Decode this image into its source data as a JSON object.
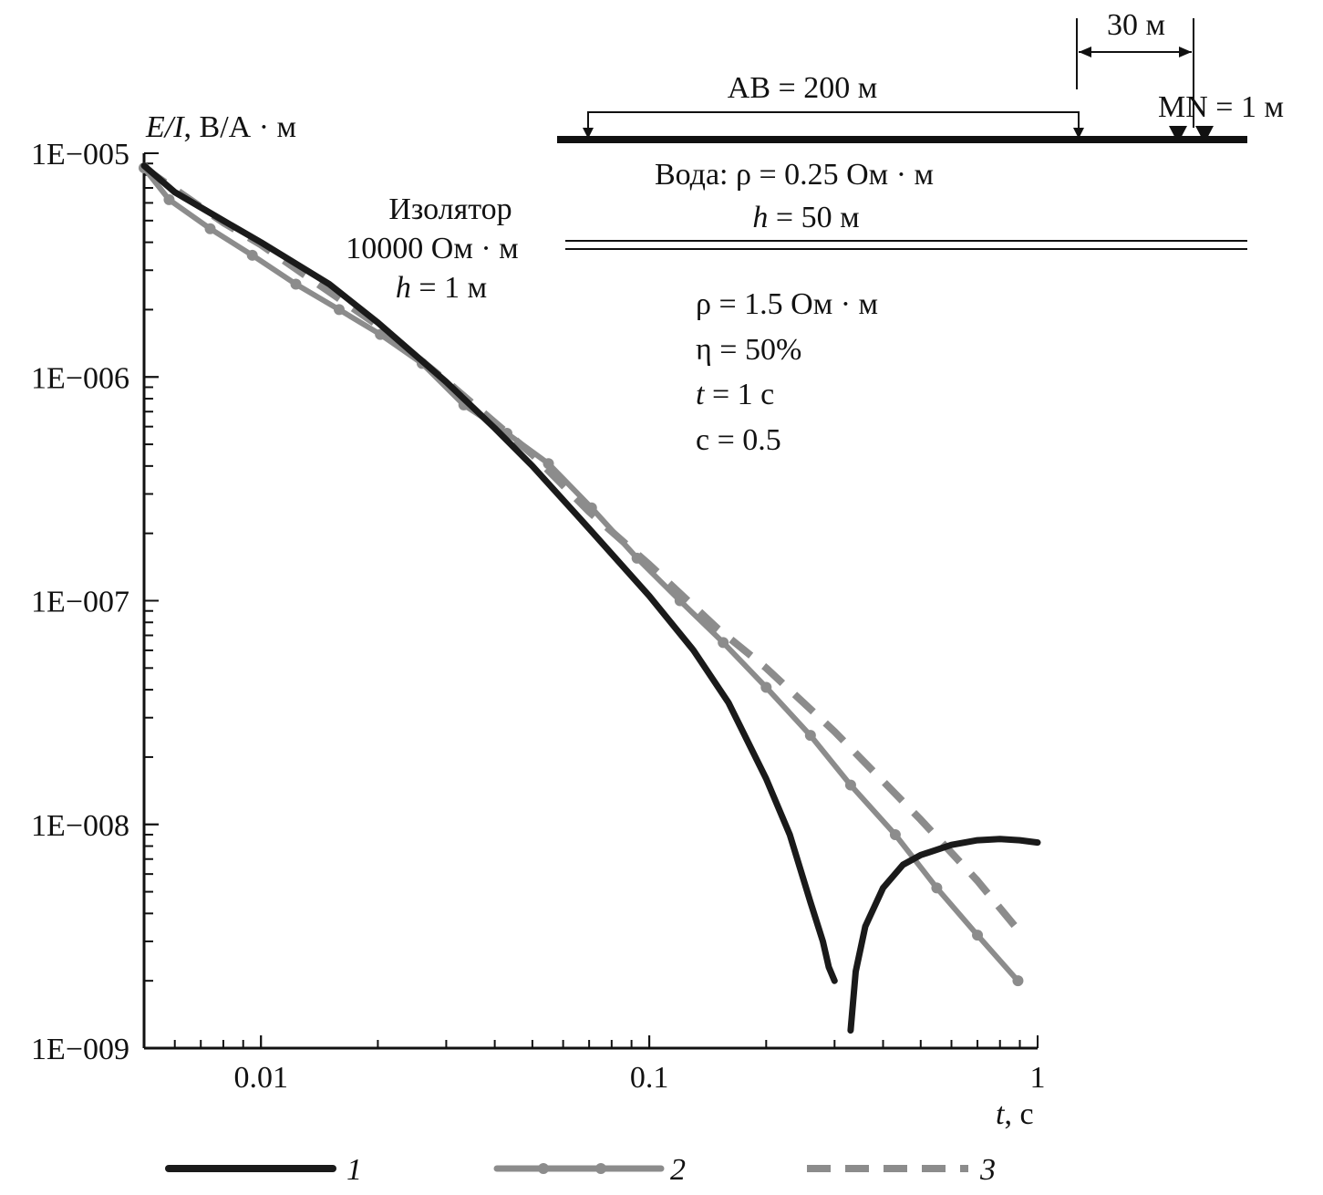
{
  "chart_data": {
    "type": "line",
    "title": "",
    "xlabel_italic": "t",
    "xlabel_unit": ", с",
    "ylabel_italic": "E/I",
    "ylabel_unit": ", В/А · м",
    "x_scale": "log",
    "y_scale": "log",
    "xlim": [
      0.005,
      1
    ],
    "ylim": [
      1e-09,
      1e-05
    ],
    "grid": false,
    "legend_position": "bottom",
    "x_ticks": [
      {
        "value": 0.01,
        "label": "0.01"
      },
      {
        "value": 0.1,
        "label": "0.1"
      },
      {
        "value": 1,
        "label": "1"
      }
    ],
    "y_ticks": [
      {
        "value": 1e-05,
        "label": "1E−005"
      },
      {
        "value": 1e-06,
        "label": "1E−006"
      },
      {
        "value": 1e-07,
        "label": "1E−007"
      },
      {
        "value": 1e-08,
        "label": "1E−008"
      },
      {
        "value": 1e-09,
        "label": "1E−009"
      }
    ],
    "series": [
      {
        "name": "1",
        "color": "#1a1a1a",
        "style": "solid",
        "x": [
          0.005,
          0.006,
          0.008,
          0.01,
          0.015,
          0.02,
          0.03,
          0.04,
          0.05,
          0.07,
          0.1,
          0.13,
          0.16,
          0.2,
          0.23,
          0.26,
          0.28,
          0.29,
          0.3
        ],
        "y": [
          8.8e-06,
          6.7e-06,
          5e-06,
          4e-06,
          2.6e-06,
          1.75e-06,
          9.5e-07,
          5.9e-07,
          4e-07,
          2.1e-07,
          1.05e-07,
          6e-08,
          3.5e-08,
          1.6e-08,
          9e-09,
          4.5e-09,
          3e-09,
          2.3e-09,
          2e-09
        ]
      },
      {
        "name": "1",
        "color": "#1a1a1a",
        "style": "solid",
        "x": [
          0.33,
          0.34,
          0.36,
          0.4,
          0.45,
          0.5,
          0.6,
          0.7,
          0.8,
          0.9,
          1.0
        ],
        "y": [
          1.2e-09,
          2.2e-09,
          3.5e-09,
          5.2e-09,
          6.6e-09,
          7.3e-09,
          8.1e-09,
          8.5e-09,
          8.6e-09,
          8.5e-09,
          8.3e-09
        ]
      },
      {
        "name": "2",
        "color": "#8c8c8c",
        "style": "solid-markers",
        "x": [
          0.005,
          0.0058,
          0.0074,
          0.0095,
          0.0123,
          0.0159,
          0.0203,
          0.026,
          0.0333,
          0.043,
          0.055,
          0.071,
          0.093,
          0.12,
          0.155,
          0.2,
          0.26,
          0.33,
          0.43,
          0.55,
          0.7,
          0.89
        ],
        "y": [
          8.6e-06,
          6.2e-06,
          4.6e-06,
          3.5e-06,
          2.6e-06,
          2e-06,
          1.55e-06,
          1.15e-06,
          7.5e-07,
          5.6e-07,
          4.1e-07,
          2.6e-07,
          1.55e-07,
          1e-07,
          6.5e-08,
          4.1e-08,
          2.5e-08,
          1.5e-08,
          9e-09,
          5.2e-09,
          3.2e-09,
          2e-09
        ]
      },
      {
        "name": "3",
        "color": "#8c8c8c",
        "style": "dashed",
        "x": [
          0.005,
          0.008,
          0.01,
          0.02,
          0.03,
          0.05,
          0.07,
          0.1,
          0.15,
          0.2,
          0.3,
          0.5,
          0.7,
          0.9
        ],
        "y": [
          8.6e-06,
          4.9e-06,
          3.9e-06,
          1.7e-06,
          9.6e-07,
          4.5e-07,
          2.5e-07,
          1.45e-07,
          7.5e-08,
          5e-08,
          2.6e-08,
          1.05e-08,
          5.6e-09,
          3.3e-09
        ]
      }
    ],
    "legend": [
      {
        "label": "1",
        "style": "solid",
        "color": "#1a1a1a"
      },
      {
        "label": "2",
        "style": "solid-markers",
        "color": "#8c8c8c"
      },
      {
        "label": "3",
        "style": "dashed",
        "color": "#8c8c8c"
      }
    ],
    "annotations": {
      "dim_30": "30 м",
      "ab": "AB = 200 м",
      "mn": "MN = 1 м",
      "m_label": "M",
      "n_label": "N",
      "water": "Вода: ρ = 0.25 Ом · м",
      "water_h_italic": "h",
      "water_h_rest": " = 50 м",
      "insulator": "Изолятор",
      "insulator_rho": "10000 Ом · м",
      "insulator_h_italic": "h",
      "insulator_h_rest": " = 1 м",
      "rho": "ρ = 1.5 Ом · м",
      "eta": "η = 50%",
      "t_italic": "t",
      "t_rest": " = 1 с",
      "c": "с = 0.5"
    }
  }
}
